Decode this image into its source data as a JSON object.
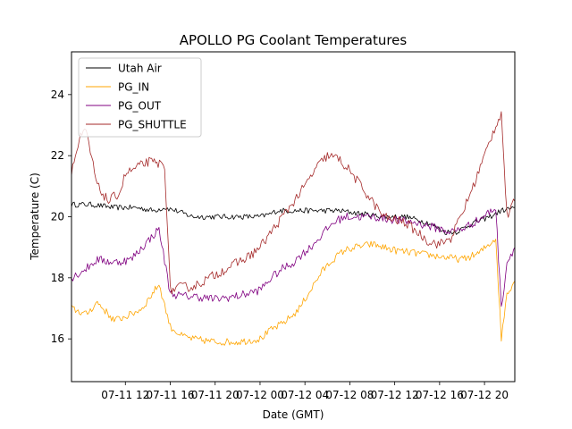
{
  "chart_data": {
    "type": "line",
    "title": "APOLLO PG Coolant Temperatures",
    "xlabel": "Date (GMT)",
    "ylabel": "Temperature (C)",
    "x_unit": "hours since 07-11 08:00 GMT",
    "xlim": [
      -0.8,
      38.7
    ],
    "ylim": [
      14.6,
      25.4
    ],
    "x_ticks": [
      {
        "x": 4,
        "label": "07-11 12"
      },
      {
        "x": 8,
        "label": "07-11 16"
      },
      {
        "x": 12,
        "label": "07-11 20"
      },
      {
        "x": 16,
        "label": "07-12 00"
      },
      {
        "x": 20,
        "label": "07-12 04"
      },
      {
        "x": 24,
        "label": "07-12 08"
      },
      {
        "x": 28,
        "label": "07-12 12"
      },
      {
        "x": 32,
        "label": "07-12 16"
      },
      {
        "x": 36,
        "label": "07-12 20"
      }
    ],
    "y_ticks": [
      16,
      18,
      20,
      22,
      24
    ],
    "legend_position": "top-left",
    "series": [
      {
        "name": "Utah Air",
        "color": "#000000",
        "x": [
          -0.8,
          1,
          3,
          5,
          6.5,
          7.5,
          8.5,
          10,
          12,
          14,
          16,
          17,
          17.5,
          19,
          21,
          23,
          25,
          27,
          29,
          31,
          32.5,
          33.5,
          35,
          36.5,
          37.5,
          38.7
        ],
        "values": [
          20.4,
          20.4,
          20.3,
          20.3,
          20.2,
          20.3,
          20.2,
          20.0,
          20.0,
          20.0,
          20.0,
          20.1,
          20.2,
          20.2,
          20.2,
          20.2,
          20.1,
          20.0,
          20.0,
          19.8,
          19.5,
          19.5,
          19.8,
          20.0,
          20.2,
          20.3
        ]
      },
      {
        "name": "PG_IN",
        "color": "#ffa500",
        "x": [
          -0.8,
          0.5,
          1.5,
          3,
          4.5,
          5.5,
          7,
          8,
          9,
          10,
          12,
          14,
          16,
          17,
          18,
          19,
          19.5,
          20.5,
          21.5,
          22.5,
          23.5,
          24.5,
          26,
          28,
          30,
          32,
          34,
          35.5,
          37,
          37.5,
          38,
          38.7
        ],
        "values": [
          17.0,
          16.8,
          17.2,
          16.6,
          16.8,
          17.0,
          17.8,
          16.4,
          16.1,
          16.0,
          15.9,
          15.9,
          16.0,
          16.3,
          16.5,
          16.8,
          17.0,
          17.6,
          18.2,
          18.6,
          18.9,
          19.0,
          19.1,
          18.9,
          18.8,
          18.7,
          18.6,
          18.8,
          19.3,
          16.0,
          17.5,
          17.9
        ]
      },
      {
        "name": "PG_OUT",
        "color": "#800080",
        "x": [
          -0.8,
          0.5,
          1.5,
          3,
          4.5,
          5.5,
          7,
          8,
          9,
          10,
          12,
          14,
          16,
          17,
          18,
          19,
          19.5,
          20.5,
          21.5,
          22.5,
          23.5,
          24.5,
          26,
          28,
          30,
          32,
          33,
          34,
          35.5,
          37,
          37.5,
          38,
          38.7
        ],
        "values": [
          18.0,
          18.3,
          18.6,
          18.5,
          18.6,
          19.0,
          19.6,
          17.5,
          17.4,
          17.4,
          17.3,
          17.4,
          17.6,
          18.0,
          18.3,
          18.5,
          18.7,
          19.0,
          19.4,
          19.8,
          20.0,
          20.0,
          20.0,
          19.9,
          19.8,
          19.6,
          19.5,
          19.6,
          19.9,
          20.3,
          17.0,
          18.5,
          19.0
        ]
      },
      {
        "name": "PG_SHUTTLE",
        "color": "#a52a2a",
        "x": [
          -0.8,
          0,
          0.5,
          1.5,
          2.5,
          3.5,
          4,
          5,
          6,
          7.5,
          8,
          9,
          10,
          11,
          12,
          13,
          14,
          15,
          16,
          17,
          18,
          19,
          20,
          21,
          22,
          23,
          24,
          25,
          26,
          27,
          28,
          29,
          30,
          31,
          32,
          33,
          34,
          35,
          36,
          37,
          37.5,
          38,
          38.7
        ],
        "values": [
          21.5,
          22.6,
          22.8,
          21.0,
          20.5,
          20.8,
          21.4,
          21.6,
          21.8,
          21.7,
          17.6,
          17.7,
          17.7,
          17.9,
          18.1,
          18.3,
          18.5,
          18.7,
          19.0,
          19.5,
          20.0,
          20.5,
          21.0,
          21.6,
          22.0,
          21.9,
          21.5,
          21.0,
          20.5,
          20.0,
          19.9,
          19.8,
          19.5,
          19.2,
          19.1,
          19.3,
          20.1,
          21.0,
          22.0,
          23.0,
          23.4,
          20.0,
          20.5
        ]
      }
    ]
  }
}
